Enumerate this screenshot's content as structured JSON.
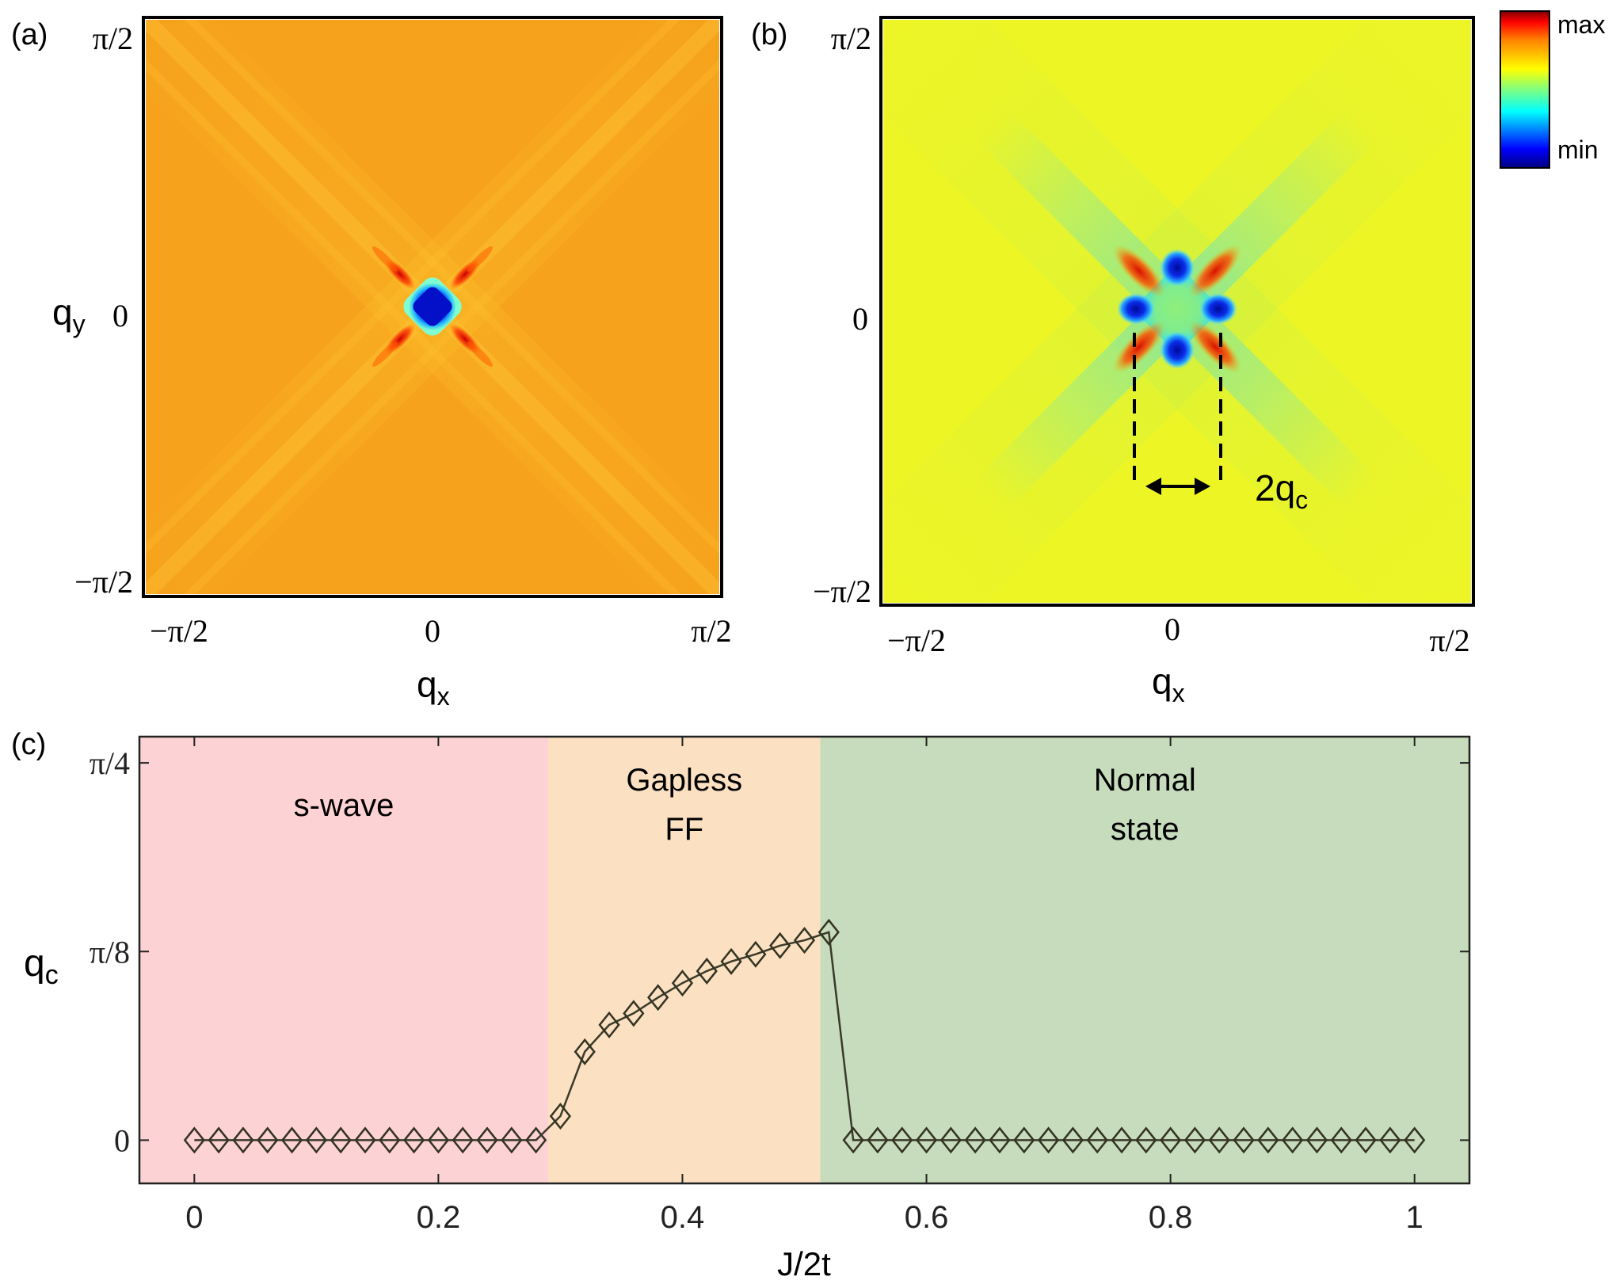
{
  "chart_data": [
    {
      "type": "heatmap",
      "panel_label": "(a)",
      "xlabel": "q",
      "xlabel_sub": "x",
      "ylabel": "q",
      "ylabel_sub": "y",
      "xticks": [
        "−π/2",
        "0",
        "π/2"
      ],
      "yticks": [
        "π/2",
        "0",
        "−π/2"
      ],
      "xlim": [
        -1.5708,
        1.5708
      ],
      "ylim": [
        -1.5708,
        1.5708
      ],
      "colormap": "jet",
      "background_color": "#f6a21c",
      "features": "single deep minimum at q = 0 with diagonal streaks along q_x = ±q_y"
    },
    {
      "type": "heatmap",
      "panel_label": "(b)",
      "xlabel": "q",
      "xlabel_sub": "x",
      "xticks": [
        "−π/2",
        "0",
        "π/2"
      ],
      "yticks": [
        "π/2",
        "0",
        "−π/2"
      ],
      "xlim": [
        -1.5708,
        1.5708
      ],
      "ylim": [
        -1.5708,
        1.5708
      ],
      "colormap": "jet",
      "background_color": "#eef525",
      "annotation": "2q",
      "annotation_sub": "c",
      "features": "four minima at (±q_c, 0) and (0, ±q_c) with diagonal streaks"
    },
    {
      "type": "colorbar",
      "max_label": "max",
      "min_label": "min",
      "colors": [
        "#00007f",
        "#0000ff",
        "#00ffff",
        "#7fff7f",
        "#ffff00",
        "#ff7f00",
        "#ff0000",
        "#7f0000"
      ]
    },
    {
      "type": "line",
      "panel_label": "(c)",
      "xlabel": "J/2t",
      "ylabel": "q",
      "ylabel_sub": "c",
      "xlim": [
        -0.045,
        1.045
      ],
      "ylim": [
        -0.09,
        0.84
      ],
      "xticks": [
        {
          "value": 0,
          "label": "0"
        },
        {
          "value": 0.2,
          "label": "0.2"
        },
        {
          "value": 0.4,
          "label": "0.4"
        },
        {
          "value": 0.6,
          "label": "0.6"
        },
        {
          "value": 0.8,
          "label": "0.8"
        },
        {
          "value": 1,
          "label": "1"
        }
      ],
      "yticks": [
        {
          "value": 0,
          "label": "0"
        },
        {
          "value": 0.3927,
          "label": "π/8"
        },
        {
          "value": 0.7854,
          "label": "π/4"
        }
      ],
      "regions": [
        {
          "x0": -0.045,
          "x1": 0.29,
          "color": "#fdd2d4",
          "label_lines": [
            "s-wave"
          ]
        },
        {
          "x0": 0.29,
          "x1": 0.513,
          "color": "#fbe0c2",
          "label_lines": [
            "Gapless",
            "FF"
          ]
        },
        {
          "x0": 0.513,
          "x1": 1.045,
          "color": "#c6dcbc",
          "label_lines": [
            "Normal",
            "state"
          ]
        }
      ],
      "series": [
        {
          "name": "q_c",
          "marker": "diamond",
          "x": [
            0,
            0.02,
            0.04,
            0.06,
            0.08,
            0.1,
            0.12,
            0.14,
            0.16,
            0.18,
            0.2,
            0.22,
            0.24,
            0.26,
            0.28,
            0.3,
            0.32,
            0.34,
            0.36,
            0.38,
            0.4,
            0.42,
            0.44,
            0.46,
            0.48,
            0.5,
            0.52,
            0.54,
            0.56,
            0.58,
            0.6,
            0.62,
            0.64,
            0.66,
            0.68,
            0.7,
            0.72,
            0.74,
            0.76,
            0.78,
            0.8,
            0.82,
            0.84,
            0.86,
            0.88,
            0.9,
            0.92,
            0.94,
            0.96,
            0.98,
            1
          ],
          "y": [
            0,
            0,
            0,
            0,
            0,
            0,
            0,
            0,
            0,
            0,
            0,
            0,
            0,
            0,
            0,
            0.05,
            0.184,
            0.24,
            0.264,
            0.297,
            0.327,
            0.352,
            0.372,
            0.387,
            0.405,
            0.416,
            0.433,
            0,
            0,
            0,
            0,
            0,
            0,
            0,
            0,
            0,
            0,
            0,
            0,
            0,
            0,
            0,
            0,
            0,
            0,
            0,
            0,
            0,
            0,
            0,
            0
          ]
        }
      ]
    }
  ]
}
